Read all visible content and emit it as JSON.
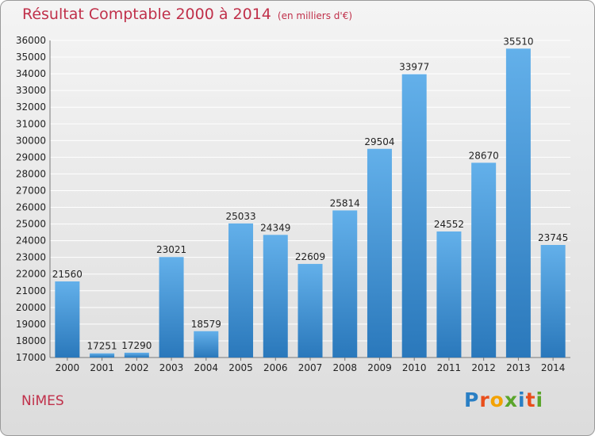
{
  "header": {
    "title": "Résultat Comptable 2000 à 2014",
    "subtitle": "(en milliers d'€)"
  },
  "footer": {
    "city": "NiMES",
    "logo": {
      "letters": [
        "P",
        "r",
        "o",
        "x",
        "i",
        "t",
        "i"
      ],
      "colors": [
        "#2a7fc4",
        "#e94e1b",
        "#f3a200",
        "#5aa52b",
        "#2a7fc4",
        "#e94e1b",
        "#5aa52b"
      ]
    }
  },
  "colors": {
    "bar_top": "#63b0ea",
    "bar_bottom": "#2a78bb",
    "grid": "#ffffff",
    "accent": "#c0304a"
  },
  "chart_data": {
    "type": "bar",
    "title": "Résultat Comptable 2000 à 2014",
    "subtitle": "(en milliers d'€)",
    "xlabel": "",
    "ylabel": "",
    "categories": [
      "2000",
      "2001",
      "2002",
      "2003",
      "2004",
      "2005",
      "2006",
      "2007",
      "2008",
      "2009",
      "2010",
      "2011",
      "2012",
      "2013",
      "2014"
    ],
    "values": [
      21560,
      17251,
      17290,
      23021,
      18579,
      25033,
      24349,
      22609,
      25814,
      29504,
      33977,
      24552,
      28670,
      35510,
      23745
    ],
    "ylim": [
      17000,
      36000
    ],
    "yticks": [
      17000,
      18000,
      19000,
      20000,
      21000,
      22000,
      23000,
      24000,
      25000,
      26000,
      27000,
      28000,
      29000,
      30000,
      31000,
      32000,
      33000,
      34000,
      35000,
      36000
    ],
    "grid": true
  }
}
